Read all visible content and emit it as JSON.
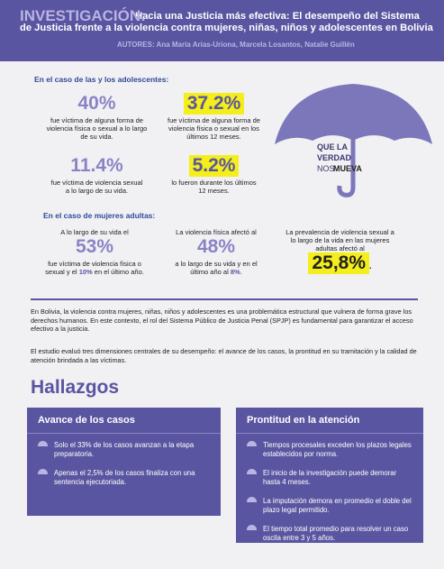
{
  "header": {
    "label": "INVESTIGACIÓN:",
    "title": "Hacia una Justicia más efectiva: El desempeño del Sistema de Justicia frente a la violencia contra mujeres, niñas, niños y adolescentes en Bolivia",
    "authors": "AUTORES: Ana María Arias-Uriona, Marcela Losantos, Natalie Guillén"
  },
  "adolescents": {
    "heading": "En el caso de las y los adolescentes:",
    "stats": [
      {
        "value": "40%",
        "text": "fue víctima de alguna forma de violencia física o sexual a lo largo de su vida."
      },
      {
        "value": "37.2%",
        "text": "fue víctima de alguna forma de violencia física o sexual en los últimos 12 meses."
      },
      {
        "value": "11.4%",
        "text": "fue víctima de violencia sexual a lo largo de su vida."
      },
      {
        "value": "5.2%",
        "text": "lo fueron durante los últimos 12 meses."
      }
    ]
  },
  "slogan": [
    "QUE LA",
    "VERDAD",
    "NOS",
    "MUEVA"
  ],
  "adults": {
    "heading": "En el caso de mujeres adultas:",
    "stats": [
      {
        "pre": "A lo largo de su vida el",
        "value": "53%",
        "post": "fue víctima de violencia física o sexual y el",
        "highlight": "10%",
        "post2": "en el último año."
      },
      {
        "pre": "La violencia física afectó al",
        "value": "48%",
        "post": "a lo largo de su vida y en el último año al",
        "highlight": "8%",
        "post2": "."
      },
      {
        "pre": "La prevalencia de violencia sexual a lo largo de la vida en las mujeres adultas afectó al",
        "value": "25,8%",
        "post": "."
      }
    ]
  },
  "intro": [
    "En Bolivia, la violencia contra mujeres, niñas, niños y adolescentes es una problemática estructural que vulnera de forma grave los derechos humanos. En este contexto, el rol del Sistema Público de Justicia Penal (SPJP) es fundamental para garantizar el acceso efectivo a la justicia.",
    "El estudio evaluó tres dimensiones centrales de su desempeño: el avance de los casos, la prontitud en su tramitación y la calidad de atención brindada a las víctimas."
  ],
  "findings": {
    "title": "Hallazgos",
    "cards": [
      {
        "title": "Avance de los casos",
        "items": [
          "Solo el 33% de los casos avanzan a la etapa preparatoria.",
          "Apenas el 2,5% de los casos finaliza con una sentencia ejecutoriada."
        ]
      },
      {
        "title": "Prontitud en la atención",
        "items": [
          "Tiempos procesales exceden los plazos legales establecidos por norma.",
          "El inicio de la investigación puede demorar hasta 4 meses.",
          "La imputación demora en promedio el doble del plazo legal permitido.",
          "El tiempo total promedio para resolver un caso oscila entre 3 y 5 años."
        ]
      }
    ]
  }
}
